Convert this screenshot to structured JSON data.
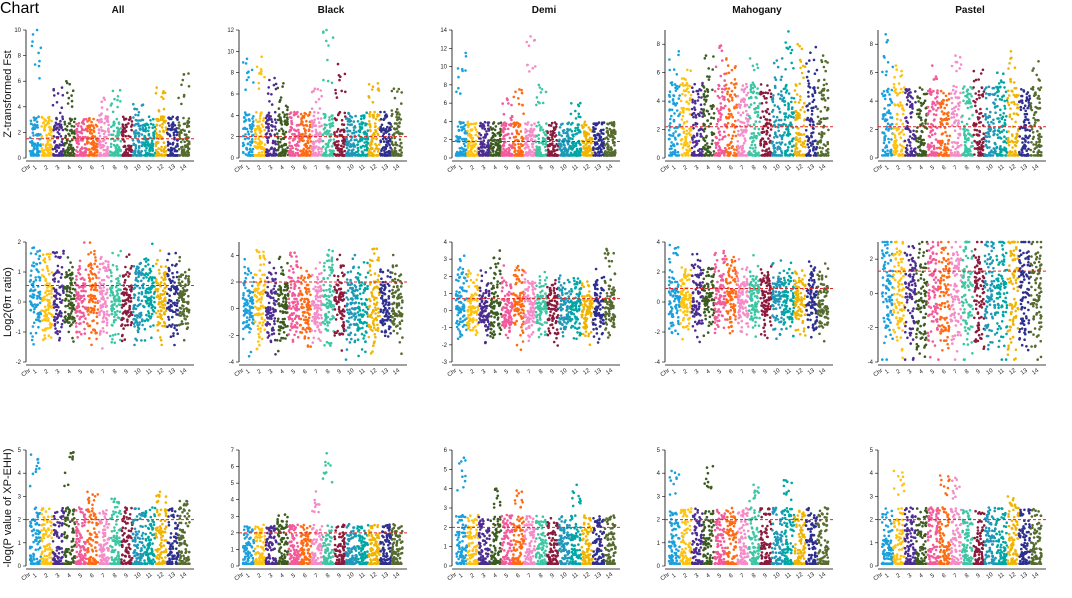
{
  "figure_title": "",
  "palette": [
    "#1aa0dc",
    "#ffc20e",
    "#4b2c91",
    "#3b5b1f",
    "#f25a9a",
    "#ff6a13",
    "#f48cc8",
    "#3cc6a3",
    "#8b1a3c",
    "#1f98b8",
    "#00a6a6",
    "#f0b400",
    "#2e2e8f",
    "#556b2f"
  ],
  "threshold_color": "#e0242a",
  "chart_data": [
    {
      "type": "scatter",
      "row": 0,
      "col": 0,
      "title": "All",
      "ylabel": "Z-transformed Fst",
      "ylim": [
        0,
        10
      ],
      "yticks": [
        0,
        2,
        4,
        6,
        8,
        10
      ],
      "threshold": 1.5,
      "base": 1.2,
      "noise": 1.5,
      "peaks": [
        [
          1,
          10
        ],
        [
          3,
          5.5
        ],
        [
          4,
          6
        ],
        [
          7,
          4.7
        ],
        [
          8,
          5.3
        ],
        [
          10,
          4.2
        ],
        [
          12,
          5.5
        ],
        [
          14,
          6.6
        ]
      ],
      "chromosomes": [
        "Chr",
        "1",
        "2",
        "3",
        "4",
        "5",
        "6",
        "7",
        "8",
        "9",
        "10",
        "11",
        "12",
        "13",
        "14"
      ]
    },
    {
      "type": "scatter",
      "row": 0,
      "col": 1,
      "title": "Black",
      "ylabel": "",
      "ylim": [
        0,
        12
      ],
      "yticks": [
        0,
        2,
        4,
        6,
        8,
        10,
        12
      ],
      "threshold": 2.0,
      "base": 1.4,
      "noise": 2.2,
      "peaks": [
        [
          1,
          9.3
        ],
        [
          2,
          9.5
        ],
        [
          3,
          7.5
        ],
        [
          4,
          7
        ],
        [
          7,
          6.5
        ],
        [
          8,
          12
        ],
        [
          9,
          8.8
        ],
        [
          12,
          7
        ],
        [
          14,
          6.5
        ]
      ],
      "chromosomes": [
        "Chr",
        "1",
        "2",
        "3",
        "4",
        "5",
        "6",
        "7",
        "8",
        "9",
        "10",
        "11",
        "12",
        "13",
        "14"
      ]
    },
    {
      "type": "scatter",
      "row": 0,
      "col": 2,
      "title": "Demi",
      "ylabel": "",
      "ylim": [
        0,
        14
      ],
      "yticks": [
        0,
        2,
        4,
        6,
        8,
        10,
        12,
        14
      ],
      "threshold": 1.8,
      "base": 1.3,
      "noise": 2.0,
      "peaks": [
        [
          1,
          11.5
        ],
        [
          5,
          6.5
        ],
        [
          6,
          7.5
        ],
        [
          7,
          13.3
        ],
        [
          8,
          8
        ],
        [
          11,
          6
        ]
      ],
      "chromosomes": [
        "Chr",
        "1",
        "2",
        "3",
        "4",
        "5",
        "6",
        "7",
        "8",
        "9",
        "10",
        "11",
        "12",
        "13",
        "14"
      ]
    },
    {
      "type": "scatter",
      "row": 0,
      "col": 3,
      "title": "Mahogany",
      "ylabel": "",
      "ylim": [
        0,
        9
      ],
      "yticks": [
        0,
        2,
        4,
        6,
        8
      ],
      "threshold": 2.2,
      "base": 1.6,
      "noise": 2.8,
      "peaks": [
        [
          1,
          7.5
        ],
        [
          2,
          6.2
        ],
        [
          4,
          7.2
        ],
        [
          5,
          7.9
        ],
        [
          6,
          7
        ],
        [
          8,
          7
        ],
        [
          10,
          7
        ],
        [
          11,
          8.9
        ],
        [
          12,
          8
        ],
        [
          13,
          7.8
        ],
        [
          14,
          7.2
        ]
      ],
      "chromosomes": [
        "Chr",
        "1",
        "2",
        "3",
        "4",
        "5",
        "6",
        "7",
        "8",
        "9",
        "10",
        "11",
        "12",
        "13",
        "14"
      ]
    },
    {
      "type": "scatter",
      "row": 0,
      "col": 4,
      "title": "Pastel",
      "ylabel": "",
      "ylim": [
        0,
        9
      ],
      "yticks": [
        0,
        2,
        4,
        6,
        8
      ],
      "threshold": 2.2,
      "base": 1.6,
      "noise": 2.6,
      "peaks": [
        [
          1,
          8.7
        ],
        [
          2,
          6.5
        ],
        [
          5,
          6.5
        ],
        [
          7,
          7.2
        ],
        [
          9,
          6.2
        ],
        [
          11,
          6
        ],
        [
          12,
          7.5
        ],
        [
          14,
          6.8
        ]
      ],
      "chromosomes": [
        "Chr",
        "1",
        "2",
        "3",
        "4",
        "5",
        "6",
        "7",
        "8",
        "9",
        "10",
        "11",
        "12",
        "13",
        "14"
      ]
    },
    {
      "type": "scatter",
      "row": 1,
      "col": 0,
      "title": "",
      "ylabel": "Log2(θπ ratio)",
      "ylim": [
        -2,
        2
      ],
      "yticks": [
        -2,
        -1,
        0,
        1,
        2
      ],
      "threshold": 0.55,
      "base": 0.1,
      "noise": 1.3,
      "peaks": [
        [
          1,
          1.8
        ],
        [
          2,
          1.6
        ],
        [
          3,
          1.7
        ],
        [
          6,
          1.7
        ],
        [
          7,
          1.5
        ],
        [
          10,
          1.3
        ]
      ],
      "chromosomes": [
        "Chr",
        "1",
        "2",
        "3",
        "4",
        "5",
        "6",
        "7",
        "8",
        "9",
        "10",
        "11",
        "12",
        "13",
        "14"
      ]
    },
    {
      "type": "scatter",
      "row": 1,
      "col": 1,
      "title": "",
      "ylabel": "",
      "ylim": [
        -4,
        5
      ],
      "yticks": [
        -4,
        -2,
        0,
        2,
        4
      ],
      "threshold": 2.0,
      "base": 0.3,
      "noise": 3.0,
      "peaks": [
        [
          2,
          4.4
        ],
        [
          5,
          4.2
        ],
        [
          8,
          4.4
        ],
        [
          12,
          4.5
        ]
      ],
      "chromosomes": [
        "Chr",
        "1",
        "2",
        "3",
        "4",
        "5",
        "6",
        "7",
        "8",
        "9",
        "10",
        "11",
        "12",
        "13",
        "14"
      ]
    },
    {
      "type": "scatter",
      "row": 1,
      "col": 2,
      "title": "",
      "ylabel": "",
      "ylim": [
        -3,
        4
      ],
      "yticks": [
        -3,
        -2,
        -1,
        0,
        1,
        2,
        3,
        4
      ],
      "threshold": 0.7,
      "base": 0.2,
      "noise": 1.8,
      "peaks": [
        [
          1,
          3.2
        ],
        [
          4,
          3.5
        ],
        [
          6,
          2.5
        ],
        [
          14,
          3.6
        ]
      ],
      "chromosomes": [
        "Chr",
        "1",
        "2",
        "3",
        "4",
        "5",
        "6",
        "7",
        "8",
        "9",
        "10",
        "11",
        "12",
        "13",
        "14"
      ]
    },
    {
      "type": "scatter",
      "row": 1,
      "col": 3,
      "title": "",
      "ylabel": "",
      "ylim": [
        -4,
        4
      ],
      "yticks": [
        -4,
        -2,
        0,
        2,
        4
      ],
      "threshold": 0.9,
      "base": 0.2,
      "noise": 2.2,
      "peaks": [
        [
          1,
          3.8
        ],
        [
          3,
          3.2
        ],
        [
          5,
          3.4
        ],
        [
          6,
          3.0
        ]
      ],
      "chromosomes": [
        "Chr",
        "1",
        "2",
        "3",
        "4",
        "5",
        "6",
        "7",
        "8",
        "9",
        "10",
        "11",
        "12",
        "13",
        "14"
      ]
    },
    {
      "type": "scatter",
      "row": 1,
      "col": 4,
      "title": "",
      "ylabel": "",
      "ylim": [
        -4,
        3
      ],
      "yticks": [
        -4,
        -2,
        0,
        2
      ],
      "threshold": 1.3,
      "base": 0.0,
      "noise": 3.5,
      "peaks": [
        [
          1,
          2.5
        ],
        [
          7,
          2.4
        ],
        [
          12,
          2.5
        ]
      ],
      "chromosomes": [
        "Chr",
        "1",
        "2",
        "3",
        "4",
        "5",
        "6",
        "7",
        "8",
        "9",
        "10",
        "11",
        "12",
        "13",
        "14"
      ]
    },
    {
      "type": "scatter",
      "row": 2,
      "col": 0,
      "title": "",
      "ylabel": "-log(P value of XP-EHH)",
      "ylim": [
        0,
        5
      ],
      "yticks": [
        0,
        1,
        2,
        3,
        4,
        5
      ],
      "threshold": 2.0,
      "base": 0.9,
      "noise": 1.2,
      "peaks": [
        [
          1,
          4.8
        ],
        [
          4,
          4.9
        ],
        [
          6,
          3.2
        ],
        [
          8,
          2.9
        ],
        [
          12,
          3.2
        ],
        [
          14,
          2.8
        ]
      ],
      "chromosomes": [
        "Chr",
        "1",
        "2",
        "3",
        "4",
        "5",
        "6",
        "7",
        "8",
        "9",
        "10",
        "11",
        "12",
        "13",
        "14"
      ]
    },
    {
      "type": "scatter",
      "row": 2,
      "col": 1,
      "title": "",
      "ylabel": "",
      "ylim": [
        0,
        7
      ],
      "yticks": [
        0,
        1,
        2,
        3,
        4,
        5,
        6,
        7
      ],
      "threshold": 2.0,
      "base": 0.9,
      "noise": 1.2,
      "peaks": [
        [
          7,
          4.5
        ],
        [
          8,
          6.8
        ],
        [
          4,
          3.1
        ]
      ],
      "chromosomes": [
        "Chr",
        "1",
        "2",
        "3",
        "4",
        "5",
        "6",
        "7",
        "8",
        "9",
        "10",
        "11",
        "12",
        "13",
        "14"
      ]
    },
    {
      "type": "scatter",
      "row": 2,
      "col": 2,
      "title": "",
      "ylabel": "",
      "ylim": [
        0,
        6
      ],
      "yticks": [
        0,
        1,
        2,
        3,
        4,
        5,
        6
      ],
      "threshold": 2.0,
      "base": 0.9,
      "noise": 1.3,
      "peaks": [
        [
          1,
          5.6
        ],
        [
          4,
          4.0
        ],
        [
          6,
          3.9
        ],
        [
          11,
          4.2
        ]
      ],
      "chromosomes": [
        "Chr",
        "1",
        "2",
        "3",
        "4",
        "5",
        "6",
        "7",
        "8",
        "9",
        "10",
        "11",
        "12",
        "13",
        "14"
      ]
    },
    {
      "type": "scatter",
      "row": 2,
      "col": 3,
      "title": "",
      "ylabel": "",
      "ylim": [
        0,
        5
      ],
      "yticks": [
        0,
        1,
        2,
        3,
        4,
        5
      ],
      "threshold": 2.0,
      "base": 0.9,
      "noise": 1.2,
      "peaks": [
        [
          1,
          4.1
        ],
        [
          4,
          4.3
        ],
        [
          8,
          3.5
        ],
        [
          11,
          3.7
        ]
      ],
      "chromosomes": [
        "Chr",
        "1",
        "2",
        "3",
        "4",
        "5",
        "6",
        "7",
        "8",
        "9",
        "10",
        "11",
        "12",
        "13",
        "14"
      ]
    },
    {
      "type": "scatter",
      "row": 2,
      "col": 4,
      "title": "",
      "ylabel": "",
      "ylim": [
        0,
        5
      ],
      "yticks": [
        0,
        1,
        2,
        3,
        4,
        5
      ],
      "threshold": 2.0,
      "base": 0.9,
      "noise": 1.2,
      "peaks": [
        [
          2,
          4.1
        ],
        [
          6,
          3.9
        ],
        [
          7,
          3.8
        ],
        [
          12,
          3.0
        ]
      ],
      "chromosomes": [
        "Chr",
        "1",
        "2",
        "3",
        "4",
        "5",
        "6",
        "7",
        "8",
        "9",
        "10",
        "11",
        "12",
        "13",
        "14"
      ]
    }
  ]
}
